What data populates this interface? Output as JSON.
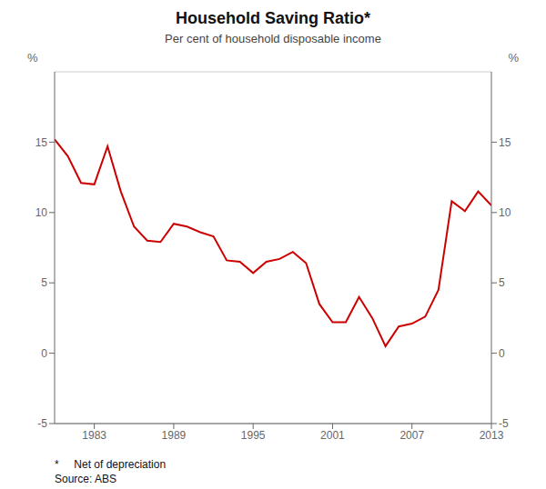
{
  "chart_data": {
    "type": "line",
    "title": "Household Saving Ratio*",
    "subtitle": "Per cent of household disposable income",
    "ylabel": "%",
    "y2label": "%",
    "annotations": [
      "*     Net of depreciation",
      "Source: ABS"
    ],
    "x": [
      1980,
      1981,
      1982,
      1983,
      1984,
      1985,
      1986,
      1987,
      1988,
      1989,
      1990,
      1991,
      1992,
      1993,
      1994,
      1995,
      1996,
      1997,
      1998,
      1999,
      2000,
      2001,
      2002,
      2003,
      2004,
      2005,
      2006,
      2007,
      2008,
      2009,
      2010,
      2011,
      2012,
      2013
    ],
    "values": [
      15.2,
      14.0,
      12.1,
      12.0,
      14.7,
      11.5,
      9.0,
      8.0,
      7.9,
      9.2,
      9.0,
      8.6,
      8.3,
      6.6,
      6.5,
      5.7,
      6.5,
      6.7,
      7.2,
      6.4,
      3.5,
      2.2,
      2.2,
      4.0,
      2.5,
      0.5,
      1.9,
      2.1,
      2.6,
      4.5,
      10.8,
      10.1,
      11.5,
      10.5
    ],
    "color": "#cc0000",
    "xlim": [
      1980,
      2013
    ],
    "xticks": [
      1983,
      1989,
      1995,
      2001,
      2007,
      2013
    ],
    "ylim": [
      -5,
      20
    ],
    "yticks": [
      -5,
      0,
      5,
      10,
      15
    ],
    "y2lim": [
      -5,
      20
    ],
    "y2ticks": [
      -5,
      0,
      5,
      10,
      15
    ],
    "grid": true
  }
}
